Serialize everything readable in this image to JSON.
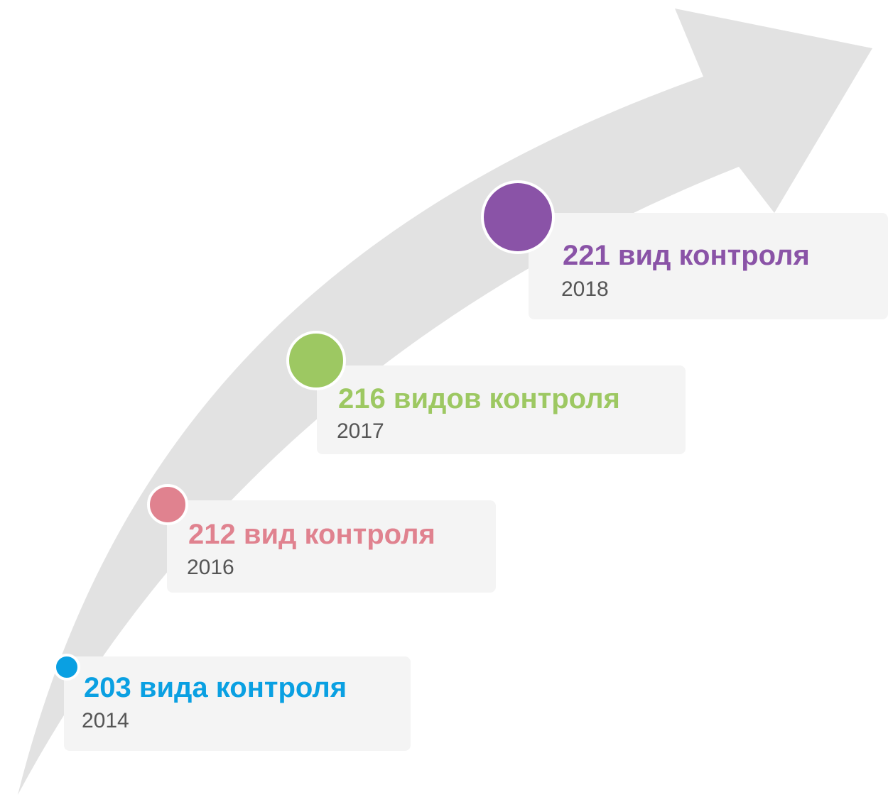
{
  "items": [
    {
      "label": "203 вида контроля",
      "year": "2014",
      "color": "#0aa0e2"
    },
    {
      "label": "212 вид контроля",
      "year": "2016",
      "color": "#e0828f"
    },
    {
      "label": "216 видов контроля",
      "year": "2017",
      "color": "#9dc862"
    },
    {
      "label": "221 вид контроля",
      "year": "2018",
      "color": "#8a53a7"
    }
  ]
}
